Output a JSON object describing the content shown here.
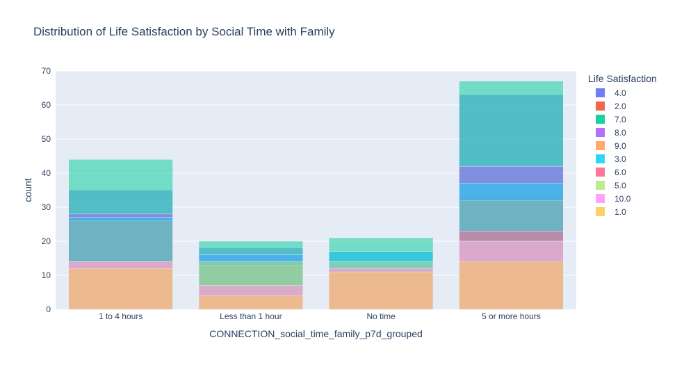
{
  "chart_data": {
    "type": "bar",
    "barmode": "overlay",
    "title": "Distribution of Life Satisfaction by Social Time with Family",
    "xlabel": "CONNECTION_social_time_family_p7d_grouped",
    "ylabel": "count",
    "ylim": [
      0,
      70
    ],
    "yticks": [
      0,
      10,
      20,
      30,
      40,
      50,
      60,
      70
    ],
    "categories": [
      "1 to 4 hours",
      "Less than 1 hour",
      "No time",
      "5 or more hours"
    ],
    "legend_title": "Life Satisfaction",
    "legend_position": "right",
    "grid": true,
    "series": [
      {
        "name": "4.0",
        "color": "#636efa",
        "values": [
          35,
          18,
          17,
          63
        ]
      },
      {
        "name": "2.0",
        "color": "#EF553B",
        "values": [
          27,
          14,
          12,
          33
        ]
      },
      {
        "name": "7.0",
        "color": "#00cc96",
        "values": [
          44,
          20,
          21,
          67
        ]
      },
      {
        "name": "8.0",
        "color": "#ab63fa",
        "values": [
          28,
          16,
          14,
          42
        ]
      },
      {
        "name": "9.0",
        "color": "#FFA15A",
        "values": [
          26,
          13,
          11,
          32
        ]
      },
      {
        "name": "3.0",
        "color": "#19d3f3",
        "values": [
          27,
          16,
          17,
          37
        ]
      },
      {
        "name": "6.0",
        "color": "#FF6692",
        "values": [
          14,
          7,
          12,
          23
        ]
      },
      {
        "name": "5.0",
        "color": "#B6E880",
        "values": [
          14,
          14,
          14,
          20
        ]
      },
      {
        "name": "10.0",
        "color": "#FF97FF",
        "values": [
          14,
          7,
          12,
          20
        ]
      },
      {
        "name": "1.0",
        "color": "#FECB52",
        "values": [
          12,
          4,
          11,
          14
        ]
      }
    ]
  }
}
